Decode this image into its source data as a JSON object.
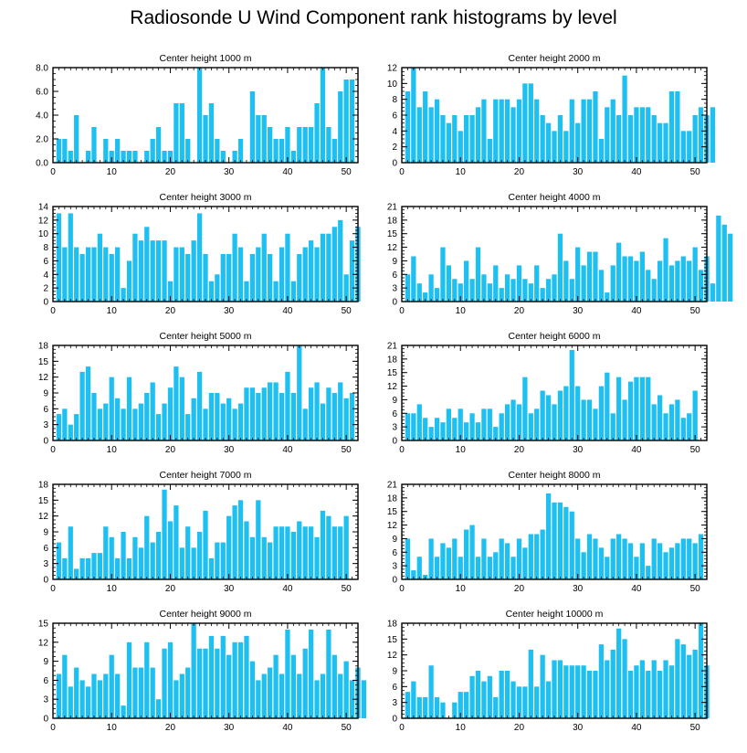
{
  "page_title": "Radiosonde U Wind Component rank histograms by level",
  "colors": {
    "bar": "#1ec0f2",
    "axis": "#000000"
  },
  "chart_data": [
    {
      "type": "bar",
      "title": "Center height 1000 m",
      "xlim": [
        0,
        52
      ],
      "ylim": [
        0,
        8
      ],
      "xticks": [
        0,
        10,
        20,
        30,
        40,
        50
      ],
      "yticks": [
        0,
        2,
        4,
        6,
        8
      ],
      "ytick_labels": [
        "0.0",
        "2.0",
        "4.0",
        "6.0",
        "8.0"
      ],
      "values": [
        2,
        2,
        1,
        4,
        0,
        1,
        3,
        0,
        2,
        1,
        2,
        1,
        1,
        1,
        0,
        1,
        2,
        3,
        1,
        1,
        5,
        5,
        2,
        0,
        8,
        4,
        5,
        2,
        1,
        0,
        1,
        2,
        0,
        6,
        4,
        4,
        3,
        2,
        2,
        3,
        1,
        3,
        3,
        3,
        5,
        8,
        3,
        2,
        6,
        7,
        7
      ]
    },
    {
      "type": "bar",
      "title": "Center height 2000 m",
      "xlim": [
        0,
        52
      ],
      "ylim": [
        0,
        12
      ],
      "xticks": [
        0,
        10,
        20,
        30,
        40,
        50
      ],
      "yticks": [
        0,
        2,
        4,
        6,
        8,
        10,
        12
      ],
      "ytick_labels": [
        "0",
        "2",
        "4",
        "6",
        "8",
        "10",
        "12"
      ],
      "values": [
        9,
        12,
        7,
        9,
        7,
        8,
        6,
        5,
        6,
        4,
        6,
        6,
        7,
        8,
        3,
        8,
        8,
        8,
        7,
        8,
        10,
        10,
        8,
        6,
        5,
        4,
        6,
        4,
        8,
        5,
        8,
        8,
        9,
        3,
        7,
        8,
        6,
        11,
        6,
        7,
        7,
        7,
        6,
        5,
        5,
        9,
        9,
        4,
        4,
        6,
        7,
        6,
        7
      ]
    },
    {
      "type": "bar",
      "title": "Center height 3000 m",
      "xlim": [
        0,
        52
      ],
      "ylim": [
        0,
        14
      ],
      "xticks": [
        0,
        10,
        20,
        30,
        40,
        50
      ],
      "yticks": [
        0,
        2,
        4,
        6,
        8,
        10,
        12,
        14
      ],
      "ytick_labels": [
        "0",
        "2",
        "4",
        "6",
        "8",
        "10",
        "12",
        "14"
      ],
      "values": [
        13,
        8,
        13,
        8,
        7,
        8,
        8,
        10,
        8,
        7,
        8,
        2,
        6,
        10,
        9,
        11,
        9,
        9,
        9,
        3,
        8,
        8,
        7,
        9,
        13,
        7,
        3,
        4,
        7,
        7,
        10,
        8,
        3,
        7,
        8,
        10,
        7,
        3,
        8,
        10,
        3,
        7,
        8,
        9,
        8,
        10,
        10,
        11,
        12,
        4,
        9,
        11
      ]
    },
    {
      "type": "bar",
      "title": "Center height 4000 m",
      "xlim": [
        0,
        52
      ],
      "ylim": [
        0,
        21
      ],
      "xticks": [
        0,
        10,
        20,
        30,
        40,
        50
      ],
      "yticks": [
        0,
        3,
        6,
        9,
        12,
        15,
        18,
        21
      ],
      "ytick_labels": [
        "0",
        "3",
        "6",
        "9",
        "12",
        "15",
        "18",
        "21"
      ],
      "values": [
        6,
        10,
        4,
        2,
        6,
        3,
        12,
        8,
        5,
        4,
        9,
        5,
        12,
        6,
        4,
        8,
        3,
        6,
        5,
        8,
        5,
        4,
        8,
        3,
        5,
        6,
        15,
        9,
        5,
        12,
        8,
        11,
        11,
        7,
        2,
        8,
        13,
        10,
        10,
        9,
        11,
        7,
        5,
        9,
        14,
        8,
        9,
        10,
        9,
        12,
        7,
        10,
        4,
        19,
        17,
        15
      ]
    },
    {
      "type": "bar",
      "title": "Center height 5000 m",
      "xlim": [
        0,
        52
      ],
      "ylim": [
        0,
        18
      ],
      "xticks": [
        0,
        10,
        20,
        30,
        40,
        50
      ],
      "yticks": [
        0,
        3,
        6,
        9,
        12,
        15,
        18
      ],
      "ytick_labels": [
        "0",
        "3",
        "6",
        "9",
        "12",
        "15",
        "18"
      ],
      "values": [
        5,
        6,
        3,
        5,
        13,
        14,
        9,
        6,
        7,
        12,
        8,
        6,
        12,
        6,
        7,
        9,
        11,
        5,
        7,
        10,
        14,
        12,
        5,
        8,
        13,
        6,
        9,
        9,
        7,
        8,
        6,
        7,
        10,
        10,
        9,
        10,
        11,
        11,
        9,
        13,
        9,
        18,
        6,
        10,
        11,
        7,
        10,
        9,
        11,
        8,
        9
      ]
    },
    {
      "type": "bar",
      "title": "Center height 6000 m",
      "xlim": [
        0,
        52
      ],
      "ylim": [
        0,
        21
      ],
      "xticks": [
        0,
        10,
        20,
        30,
        40,
        50
      ],
      "yticks": [
        0,
        3,
        6,
        9,
        12,
        15,
        18,
        21
      ],
      "ytick_labels": [
        "0",
        "3",
        "6",
        "9",
        "12",
        "15",
        "18",
        "21"
      ],
      "values": [
        6,
        6,
        8,
        5,
        3,
        5,
        4,
        7,
        5,
        7,
        4,
        6,
        4,
        7,
        7,
        3,
        6,
        8,
        9,
        8,
        14,
        6,
        7,
        11,
        10,
        8,
        11,
        12,
        20,
        12,
        9,
        9,
        7,
        12,
        15,
        6,
        14,
        9,
        13,
        14,
        14,
        14,
        8,
        10,
        6,
        8,
        9,
        5,
        6,
        11
      ]
    },
    {
      "type": "bar",
      "title": "Center height 7000 m",
      "xlim": [
        0,
        52
      ],
      "ylim": [
        0,
        18
      ],
      "xticks": [
        0,
        10,
        20,
        30,
        40,
        50
      ],
      "yticks": [
        0,
        3,
        6,
        9,
        12,
        15,
        18
      ],
      "ytick_labels": [
        "0",
        "3",
        "6",
        "9",
        "12",
        "15",
        "18"
      ],
      "values": [
        7,
        4,
        10,
        2,
        4,
        4,
        5,
        5,
        10,
        8,
        4,
        9,
        4,
        8,
        6,
        12,
        7,
        9,
        17,
        11,
        14,
        6,
        10,
        6,
        9,
        13,
        4,
        7,
        7,
        12,
        14,
        15,
        11,
        8,
        15,
        8,
        7,
        10,
        10,
        10,
        9,
        11,
        10,
        10,
        8,
        13,
        12,
        10,
        10,
        12
      ]
    },
    {
      "type": "bar",
      "title": "Center height 8000 m",
      "xlim": [
        0,
        52
      ],
      "ylim": [
        0,
        21
      ],
      "xticks": [
        0,
        10,
        20,
        30,
        40,
        50
      ],
      "yticks": [
        0,
        3,
        6,
        9,
        12,
        15,
        18,
        21
      ],
      "ytick_labels": [
        "0",
        "3",
        "6",
        "9",
        "12",
        "15",
        "18",
        "21"
      ],
      "values": [
        9,
        2,
        5,
        1,
        9,
        5,
        8,
        7,
        9,
        5,
        11,
        12,
        5,
        9,
        5,
        6,
        9,
        8,
        5,
        9,
        7,
        10,
        10,
        11,
        19,
        17,
        17,
        16,
        15,
        9,
        6,
        10,
        9,
        7,
        5,
        9,
        10,
        9,
        8,
        5,
        8,
        3,
        9,
        8,
        6,
        7,
        8,
        9,
        9,
        8,
        10
      ]
    },
    {
      "type": "bar",
      "title": "Center height 9000 m",
      "xlim": [
        0,
        52
      ],
      "ylim": [
        0,
        15
      ],
      "xticks": [
        0,
        10,
        20,
        30,
        40,
        50
      ],
      "yticks": [
        0,
        3,
        6,
        9,
        12,
        15
      ],
      "ytick_labels": [
        "0",
        "3",
        "6",
        "9",
        "12",
        "15"
      ],
      "values": [
        7,
        10,
        5,
        8,
        6,
        5,
        7,
        6,
        7,
        10,
        7,
        2,
        12,
        8,
        8,
        12,
        8,
        3,
        11,
        12,
        6,
        7,
        8,
        15,
        11,
        11,
        13,
        11,
        13,
        10,
        12,
        12,
        13,
        9,
        6,
        7,
        8,
        10,
        7,
        14,
        10,
        7,
        11,
        14,
        6,
        7,
        14,
        10,
        7,
        9,
        6,
        8,
        6
      ]
    },
    {
      "type": "bar",
      "title": "Center height 10000 m",
      "xlim": [
        0,
        52
      ],
      "ylim": [
        0,
        18
      ],
      "xticks": [
        0,
        10,
        20,
        30,
        40,
        50
      ],
      "yticks": [
        0,
        3,
        6,
        9,
        12,
        15,
        18
      ],
      "ytick_labels": [
        "0",
        "3",
        "6",
        "9",
        "12",
        "15",
        "18"
      ],
      "values": [
        5,
        7,
        4,
        4,
        10,
        4,
        3,
        0,
        3,
        5,
        5,
        8,
        9,
        7,
        8,
        4,
        9,
        9,
        7,
        6,
        6,
        13,
        6,
        12,
        7,
        11,
        11,
        10,
        10,
        10,
        10,
        9,
        9,
        14,
        11,
        13,
        17,
        15,
        9,
        10,
        11,
        9,
        11,
        9,
        11,
        10,
        15,
        14,
        12,
        13,
        18,
        10
      ]
    }
  ]
}
